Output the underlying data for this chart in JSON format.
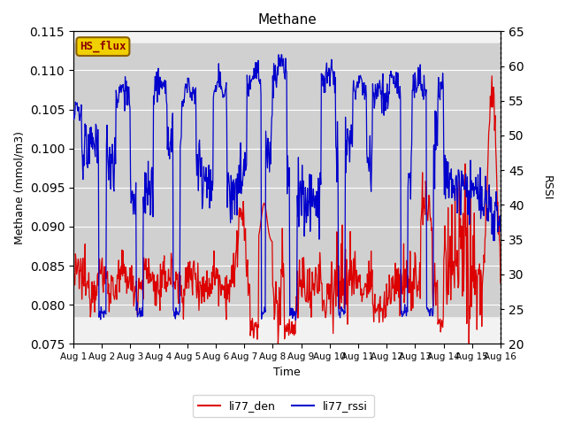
{
  "title": "Methane",
  "ylabel_left": "Methane (mmol/m3)",
  "ylabel_right": "RSSI",
  "xlabel": "Time",
  "ylim_left": [
    0.075,
    0.115
  ],
  "ylim_right": [
    20,
    65
  ],
  "xlim": [
    0,
    15
  ],
  "xtick_labels": [
    "Aug 1",
    "Aug 2",
    "Aug 3",
    "Aug 4",
    "Aug 5",
    "Aug 6",
    "Aug 7",
    "Aug 8",
    "Aug 9",
    "Aug 10",
    "Aug 11",
    "Aug 12",
    "Aug 13",
    "Aug 14",
    "Aug 15",
    "Aug 16"
  ],
  "xtick_positions": [
    0,
    1,
    2,
    3,
    4,
    5,
    6,
    7,
    8,
    9,
    10,
    11,
    12,
    13,
    14,
    15
  ],
  "line1_color": "#dd0000",
  "line2_color": "#0000cc",
  "legend_labels": [
    "li77_den",
    "li77_rssi"
  ],
  "shade_ymin": 0.0785,
  "shade_ymax": 0.1135,
  "shade_color": "#d0d0d0",
  "bg_color": "#e8e8e8",
  "plot_bg": "#f2f2f2",
  "hsflux_label": "HS_flux",
  "hsflux_bg": "#f0d000",
  "hsflux_border": "#8b6000",
  "hsflux_text_color": "#8b0000",
  "yticks_left": [
    0.075,
    0.08,
    0.085,
    0.09,
    0.095,
    0.1,
    0.105,
    0.11,
    0.115
  ],
  "yticks_right": [
    20,
    25,
    30,
    35,
    40,
    45,
    50,
    55,
    60,
    65
  ]
}
